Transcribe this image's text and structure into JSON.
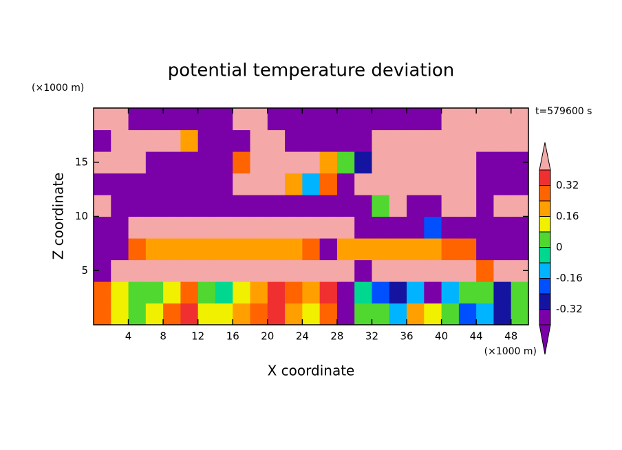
{
  "chart_data": {
    "type": "contour",
    "title": "potential temperature deviation",
    "xlabel": "X coordinate",
    "ylabel": "Z coordinate",
    "xunit": "(×1000 m)",
    "yunit": "(×1000 m)",
    "annotation": "t=579600 s",
    "xlim": [
      0,
      50
    ],
    "ylim": [
      0,
      20
    ],
    "xticks": [
      4,
      8,
      12,
      16,
      20,
      24,
      28,
      32,
      36,
      40,
      44,
      48
    ],
    "yticks": [
      5,
      10,
      15
    ],
    "x": [
      1,
      3,
      5,
      7,
      9,
      11,
      13,
      15,
      17,
      19,
      21,
      23,
      25,
      27,
      29,
      31,
      33,
      35,
      37,
      39,
      41,
      43,
      45,
      47,
      49
    ],
    "y": [
      1,
      3,
      5,
      7,
      9,
      11,
      13,
      15,
      17,
      19
    ],
    "z": [
      [
        0.25,
        0.1,
        0.05,
        0.1,
        0.3,
        0.35,
        0.1,
        0.1,
        0.2,
        0.3,
        0.35,
        0.2,
        0.15,
        0.3,
        -0.45,
        0.0,
        0.05,
        -0.1,
        0.2,
        0.1,
        0.0,
        -0.2,
        -0.1,
        -0.3,
        0.05
      ],
      [
        0.3,
        0.1,
        0.05,
        0.05,
        0.1,
        0.3,
        0.0,
        -0.05,
        0.1,
        0.2,
        0.35,
        0.3,
        0.2,
        0.35,
        -0.45,
        -0.05,
        -0.2,
        -0.3,
        -0.1,
        -0.35,
        -0.1,
        0.05,
        0.0,
        -0.3,
        0.0
      ],
      [
        -0.45,
        0.45,
        0.45,
        0.45,
        0.45,
        0.45,
        0.45,
        0.45,
        0.45,
        0.45,
        0.45,
        0.45,
        0.45,
        0.45,
        0.45,
        -0.45,
        0.45,
        0.45,
        0.45,
        0.45,
        0.45,
        0.45,
        0.3,
        0.45,
        0.45
      ],
      [
        -0.45,
        -0.45,
        0.3,
        0.2,
        0.2,
        0.2,
        0.2,
        0.2,
        0.2,
        0.2,
        0.2,
        0.2,
        0.3,
        -0.45,
        0.2,
        0.2,
        0.2,
        0.2,
        0.2,
        0.2,
        0.3,
        0.3,
        -0.45,
        -0.45,
        -0.45
      ],
      [
        -0.45,
        -0.45,
        0.45,
        0.45,
        0.45,
        0.45,
        0.45,
        0.45,
        0.45,
        0.45,
        0.45,
        0.45,
        0.45,
        0.45,
        0.45,
        -0.45,
        -0.45,
        -0.45,
        -0.45,
        -0.2,
        -0.45,
        -0.45,
        -0.45,
        -0.45,
        -0.45
      ],
      [
        0.45,
        -0.45,
        -0.45,
        -0.45,
        -0.45,
        -0.45,
        -0.45,
        -0.45,
        -0.45,
        -0.45,
        -0.45,
        -0.45,
        -0.45,
        -0.45,
        -0.45,
        -0.45,
        0.0,
        0.45,
        -0.45,
        -0.45,
        0.45,
        0.45,
        -0.45,
        0.45,
        0.45
      ],
      [
        -0.45,
        -0.45,
        -0.45,
        -0.45,
        -0.45,
        -0.45,
        -0.45,
        -0.45,
        0.45,
        0.45,
        0.45,
        0.2,
        -0.1,
        0.3,
        -0.45,
        0.45,
        0.45,
        0.45,
        0.45,
        0.45,
        0.45,
        0.45,
        -0.45,
        -0.45,
        -0.45
      ],
      [
        0.45,
        0.45,
        0.45,
        -0.45,
        -0.45,
        -0.45,
        -0.45,
        -0.45,
        0.3,
        0.45,
        0.45,
        0.45,
        0.45,
        0.2,
        0.0,
        -0.3,
        0.45,
        0.45,
        0.45,
        0.45,
        0.45,
        0.45,
        -0.45,
        -0.45,
        -0.45
      ],
      [
        -0.45,
        0.45,
        0.45,
        0.45,
        0.45,
        0.2,
        -0.45,
        -0.45,
        -0.45,
        0.45,
        0.45,
        -0.45,
        -0.45,
        -0.45,
        -0.45,
        -0.45,
        0.45,
        0.45,
        0.45,
        0.45,
        0.45,
        0.45,
        0.45,
        0.45,
        0.45
      ],
      [
        0.45,
        0.45,
        -0.45,
        -0.45,
        -0.45,
        -0.45,
        -0.45,
        -0.45,
        0.45,
        0.45,
        -0.45,
        -0.45,
        -0.45,
        -0.45,
        -0.45,
        -0.45,
        -0.45,
        -0.45,
        -0.45,
        -0.45,
        0.45,
        0.45,
        0.45,
        0.45,
        0.45
      ]
    ],
    "levels": [
      -0.4,
      -0.32,
      -0.24,
      -0.16,
      -0.08,
      0,
      0.08,
      0.16,
      0.24,
      0.32,
      0.4
    ],
    "colors": [
      "#7a00a8",
      "#7a00a8",
      "#1414a0",
      "#0050ff",
      "#00b4ff",
      "#00d890",
      "#50d830",
      "#f0f000",
      "#ffa000",
      "#ff6400",
      "#f03030",
      "#f4a8a8"
    ],
    "colorbar_ticks": [
      -0.32,
      -0.16,
      0,
      0.16,
      0.32
    ]
  }
}
